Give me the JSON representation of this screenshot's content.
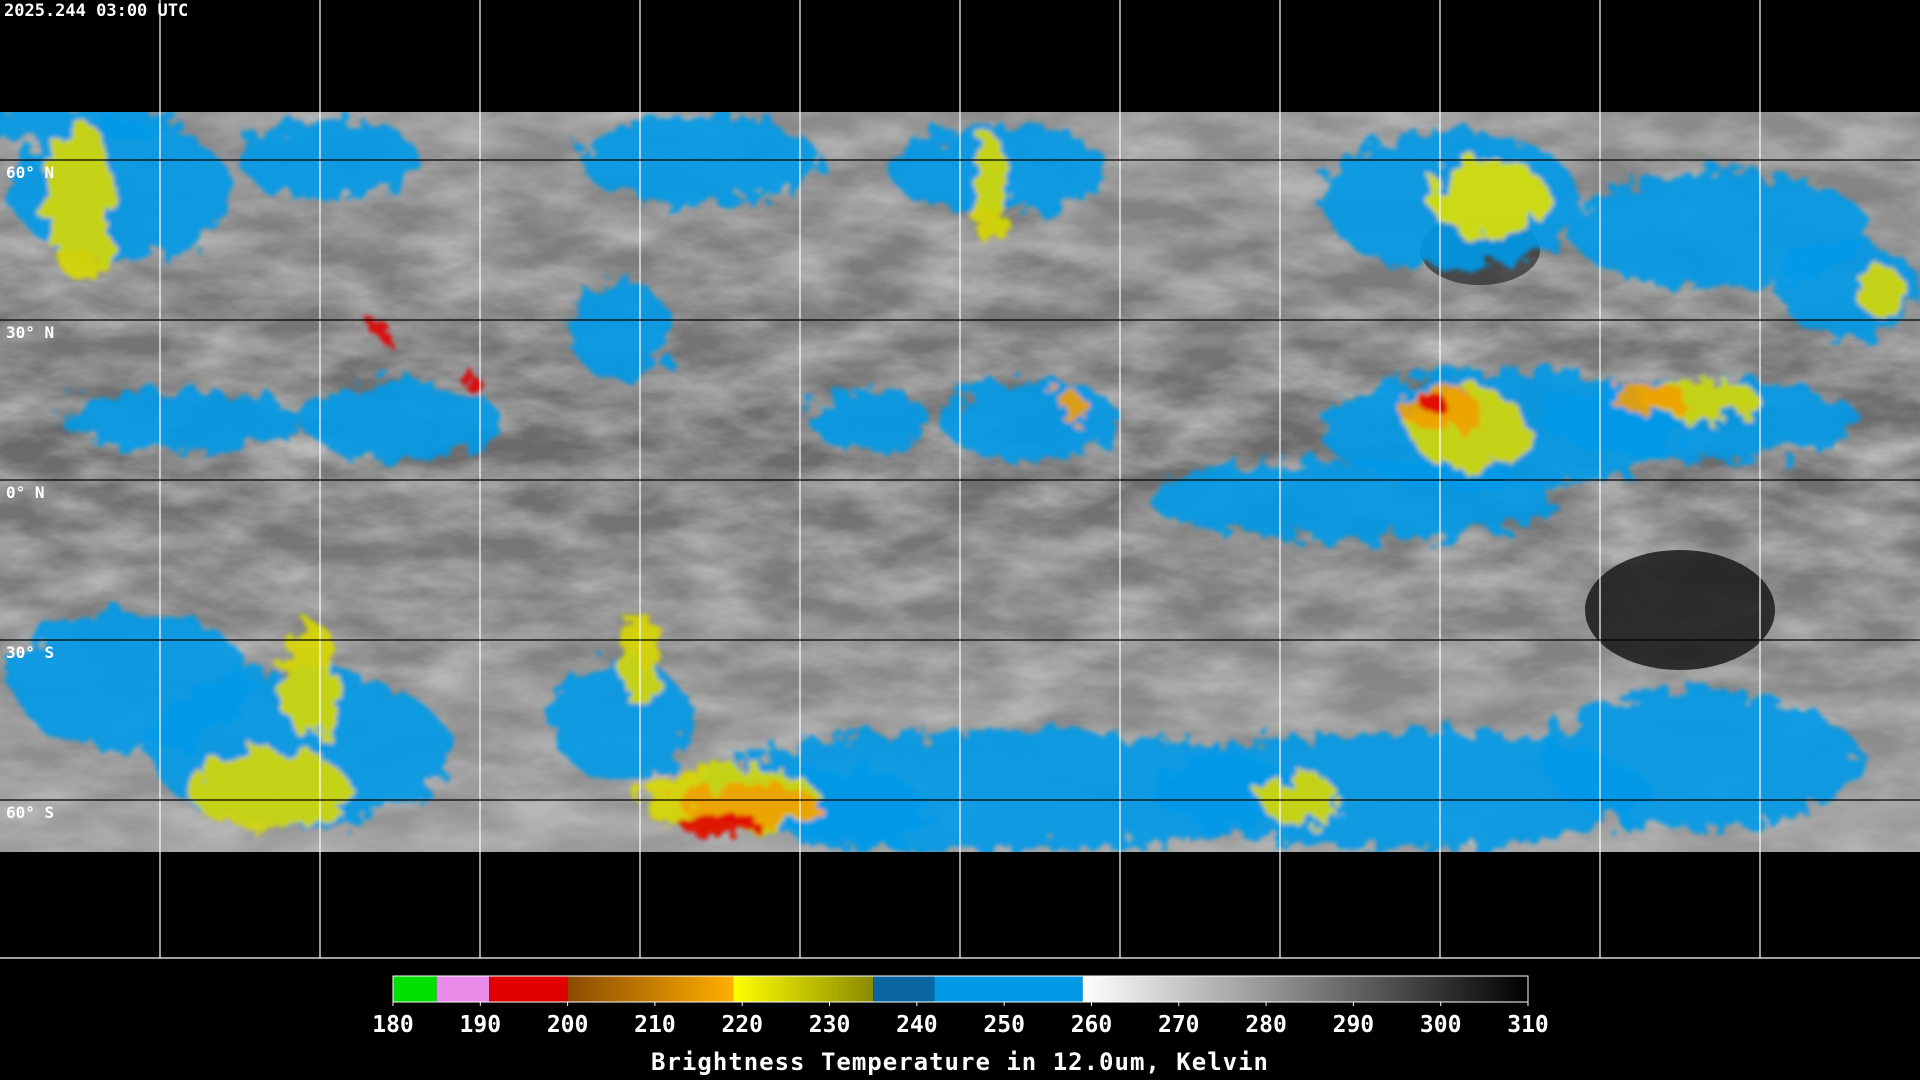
{
  "header": {
    "title": "2025.244 03:00 UTC"
  },
  "map": {
    "lat_labels": [
      "60° N",
      "30° N",
      "0° N",
      "30° S",
      "60° S"
    ]
  },
  "colorbar": {
    "range": [
      180,
      310
    ],
    "ticks": [
      180,
      190,
      200,
      210,
      220,
      230,
      240,
      250,
      260,
      270,
      280,
      290,
      300,
      310
    ],
    "label": "Brightness Temperature in 12.0um, Kelvin",
    "segments": [
      {
        "from": 180,
        "to": 185,
        "colors": [
          "#00e000",
          "#00e000"
        ]
      },
      {
        "from": 185,
        "to": 191,
        "colors": [
          "#e88ae8",
          "#e88ae8"
        ]
      },
      {
        "from": 191,
        "to": 200,
        "colors": [
          "#e00000",
          "#e00000"
        ]
      },
      {
        "from": 200,
        "to": 219,
        "colors": [
          "#8a4a00",
          "#ffb000"
        ]
      },
      {
        "from": 219,
        "to": 235,
        "colors": [
          "#ffff00",
          "#8a8a00"
        ]
      },
      {
        "from": 235,
        "to": 242,
        "colors": [
          "#0a66a2",
          "#0a66a2"
        ]
      },
      {
        "from": 242,
        "to": 259,
        "colors": [
          "#0099e8",
          "#0099e8"
        ]
      },
      {
        "from": 259,
        "to": 310,
        "colors": [
          "#ffffff",
          "#000000"
        ]
      }
    ]
  }
}
